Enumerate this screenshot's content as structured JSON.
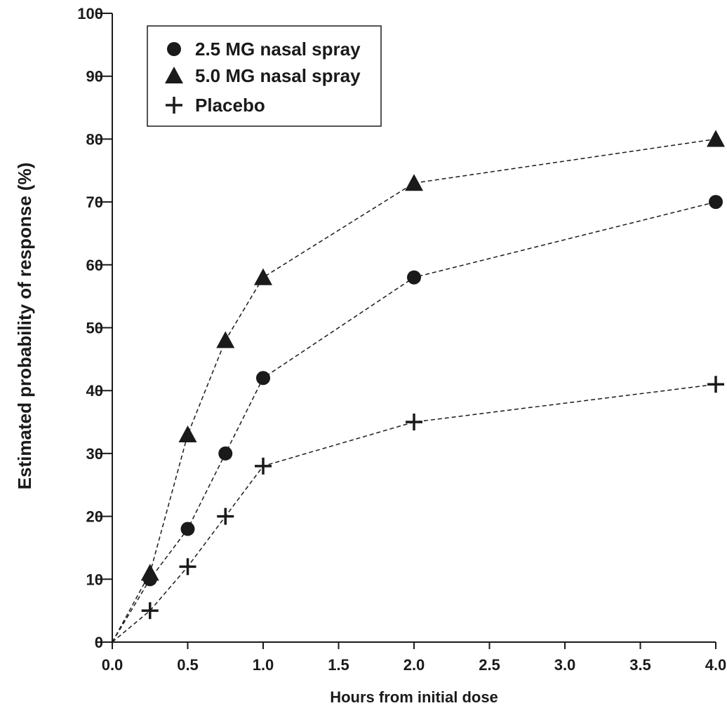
{
  "chart_data": {
    "type": "line",
    "xlabel": "Hours from initial dose",
    "ylabel": "Estimated probability of response (%)",
    "xlim": [
      0,
      4
    ],
    "ylim": [
      0,
      100
    ],
    "x_ticks": [
      "0.0",
      "0.5",
      "1.0",
      "1.5",
      "2.0",
      "2.5",
      "3.0",
      "3.5",
      "4.0"
    ],
    "y_ticks": [
      "0",
      "10",
      "20",
      "30",
      "40",
      "50",
      "60",
      "70",
      "80",
      "90",
      "100"
    ],
    "x_tick_values": [
      0,
      0.5,
      1.0,
      1.5,
      2.0,
      2.5,
      3.0,
      3.5,
      4.0
    ],
    "y_tick_values": [
      0,
      10,
      20,
      30,
      40,
      50,
      60,
      70,
      80,
      90,
      100
    ],
    "grid": false,
    "legend_position": "top-left",
    "line_style": "dashed",
    "series": [
      {
        "name": "2.5 MG nasal spray",
        "marker": "circle",
        "x": [
          0,
          0.25,
          0.5,
          0.75,
          1.0,
          2.0,
          4.0
        ],
        "y": [
          0,
          10,
          18,
          30,
          42,
          58,
          70
        ]
      },
      {
        "name": "5.0 MG nasal spray",
        "marker": "triangle",
        "x": [
          0,
          0.25,
          0.5,
          0.75,
          1.0,
          2.0,
          4.0
        ],
        "y": [
          0,
          11,
          33,
          48,
          58,
          73,
          80
        ]
      },
      {
        "name": "Placebo",
        "marker": "plus",
        "x": [
          0,
          0.25,
          0.5,
          0.75,
          1.0,
          2.0,
          4.0
        ],
        "y": [
          0,
          5,
          12,
          20,
          28,
          35,
          41
        ]
      }
    ]
  }
}
